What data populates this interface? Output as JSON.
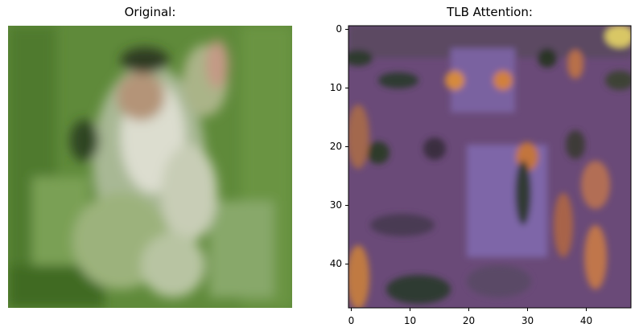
{
  "figure": {
    "left_panel": {
      "title": "Original:"
    },
    "right_panel": {
      "title": "TLB Attention:",
      "y_ticks": [
        "0",
        "10",
        "20",
        "30",
        "40"
      ],
      "x_ticks": [
        "0",
        "10",
        "20",
        "30",
        "40"
      ]
    }
  },
  "colors": {
    "grass": "#5f8a3a",
    "attention_base": "#6a4a78",
    "attention_hot": "#d58440"
  }
}
